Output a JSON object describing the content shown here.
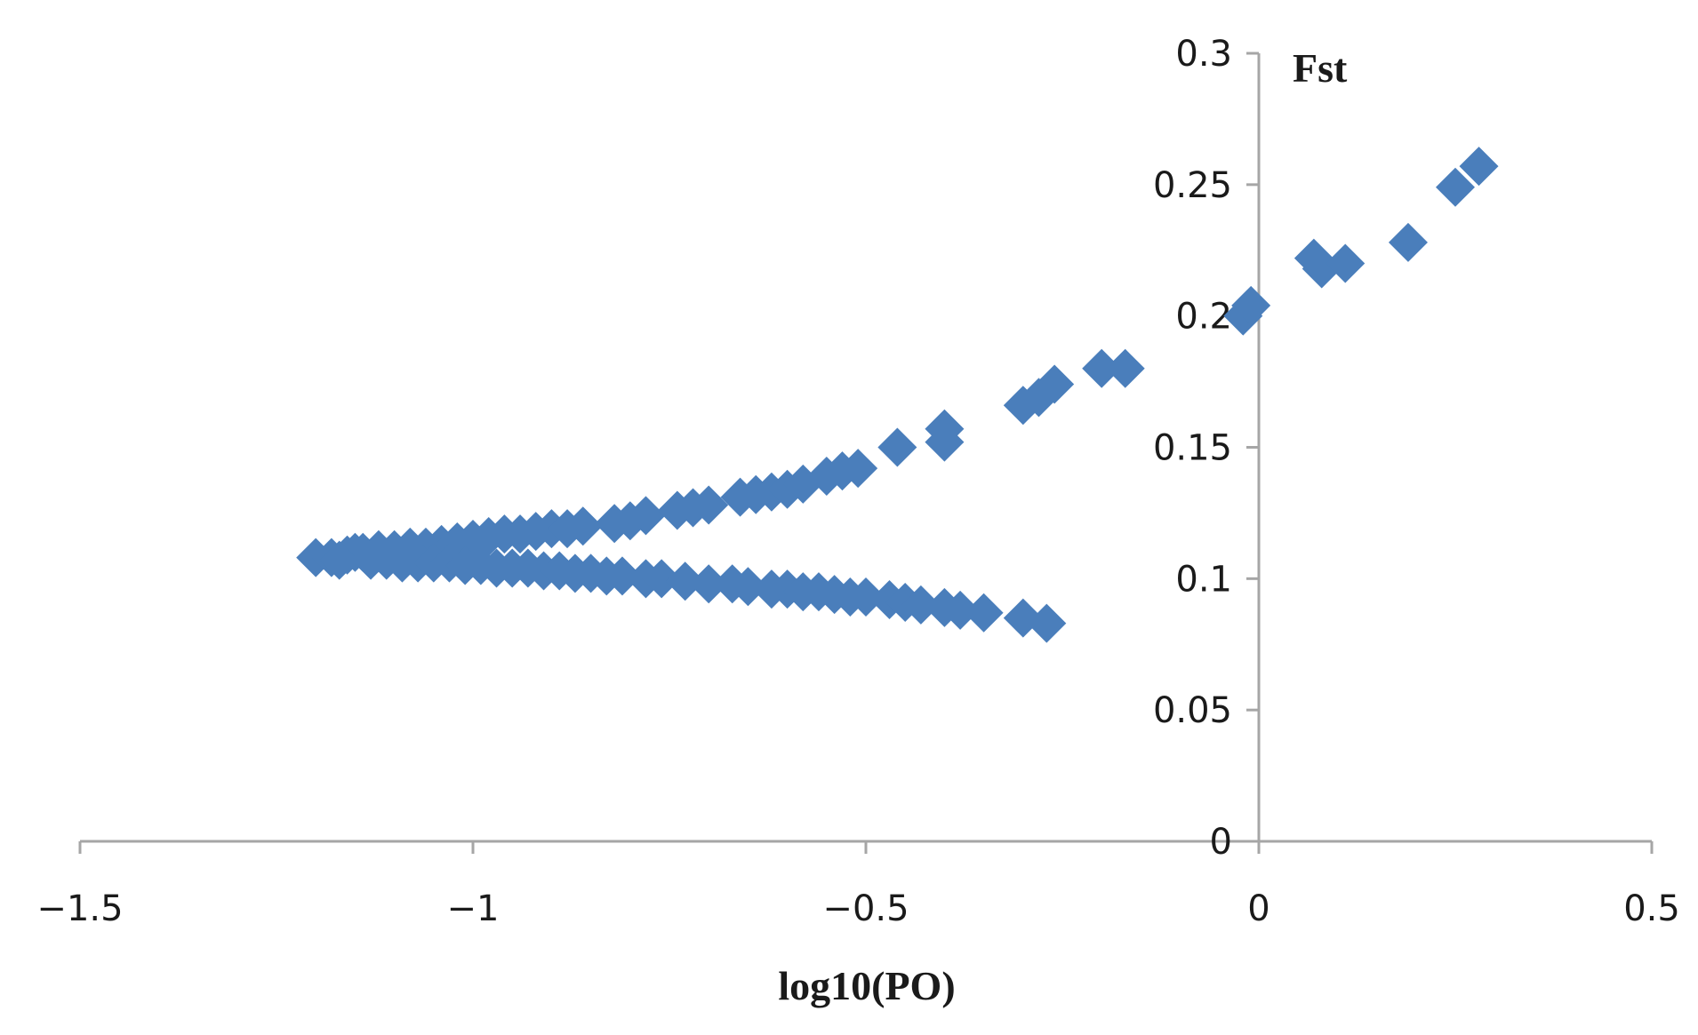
{
  "chart_data": {
    "type": "scatter",
    "title": "",
    "xlabel": "log10(PO)",
    "ylabel": "Fst",
    "xlim": [
      -1.5,
      0.5
    ],
    "ylim": [
      0,
      0.3
    ],
    "x_ticks": [
      -1.5,
      -1,
      -0.5,
      0,
      0.5
    ],
    "x_tick_labels": [
      "−1.5",
      "−1",
      "−0.5",
      "0",
      "0.5"
    ],
    "y_ticks": [
      0,
      0.05,
      0.1,
      0.15,
      0.2,
      0.25,
      0.3
    ],
    "y_tick_labels": [
      "0",
      "0.05",
      "0.1",
      "0.15",
      "0.2",
      "0.25",
      "0.3"
    ],
    "grid": false,
    "legend": "none",
    "marker": "diamond",
    "color": "#4a7ebb",
    "series": [
      {
        "name": "loci",
        "x": [
          -1.2,
          -1.18,
          -1.16,
          -1.15,
          -1.14,
          -1.12,
          -1.1,
          -1.08,
          -1.06,
          -1.04,
          -1.02,
          -1.0,
          -0.98,
          -0.96,
          -0.94,
          -0.92,
          -0.9,
          -0.88,
          -0.86,
          -0.82,
          -0.8,
          -0.78,
          -0.74,
          -0.72,
          -0.7,
          -0.66,
          -0.64,
          -0.62,
          -0.6,
          -0.58,
          -0.55,
          -0.53,
          -0.51,
          -0.46,
          -0.4,
          -0.4,
          -0.3,
          -0.28,
          -0.26,
          -0.2,
          -0.17,
          -0.02,
          -0.01,
          0.07,
          0.08,
          0.11,
          0.19,
          0.25,
          0.28,
          -1.17,
          -1.13,
          -1.11,
          -1.09,
          -1.07,
          -1.05,
          -1.03,
          -1.01,
          -0.99,
          -0.97,
          -0.95,
          -0.93,
          -0.91,
          -0.89,
          -0.87,
          -0.85,
          -0.83,
          -0.81,
          -0.78,
          -0.76,
          -0.73,
          -0.7,
          -0.67,
          -0.65,
          -0.62,
          -0.6,
          -0.58,
          -0.56,
          -0.54,
          -0.52,
          -0.5,
          -0.47,
          -0.45,
          -0.43,
          -0.4,
          -0.38,
          -0.35,
          -0.3,
          -0.27
        ],
        "y": [
          0.108,
          0.108,
          0.109,
          0.11,
          0.11,
          0.111,
          0.111,
          0.112,
          0.112,
          0.113,
          0.114,
          0.115,
          0.116,
          0.117,
          0.117,
          0.118,
          0.119,
          0.119,
          0.12,
          0.121,
          0.122,
          0.124,
          0.126,
          0.127,
          0.128,
          0.131,
          0.132,
          0.133,
          0.134,
          0.136,
          0.139,
          0.141,
          0.142,
          0.15,
          0.152,
          0.157,
          0.166,
          0.169,
          0.174,
          0.18,
          0.18,
          0.2,
          0.204,
          0.222,
          0.218,
          0.22,
          0.228,
          0.249,
          0.257,
          0.107,
          0.107,
          0.107,
          0.106,
          0.106,
          0.106,
          0.106,
          0.105,
          0.105,
          0.104,
          0.104,
          0.104,
          0.103,
          0.103,
          0.102,
          0.102,
          0.101,
          0.101,
          0.1,
          0.1,
          0.099,
          0.098,
          0.098,
          0.097,
          0.096,
          0.096,
          0.095,
          0.095,
          0.094,
          0.093,
          0.093,
          0.092,
          0.091,
          0.09,
          0.089,
          0.088,
          0.087,
          0.085,
          0.083
        ]
      }
    ]
  }
}
